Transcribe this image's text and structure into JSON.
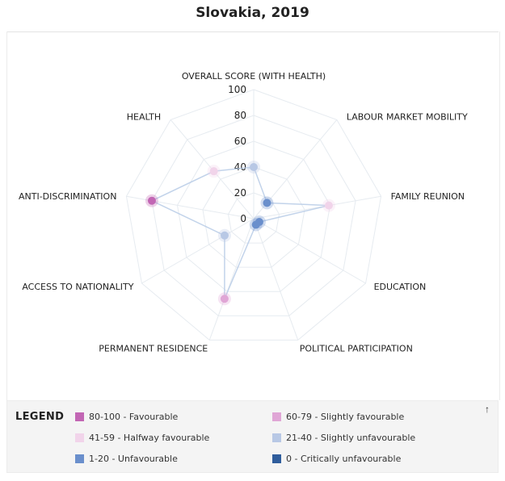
{
  "page": {
    "title": "Slovakia, 2019"
  },
  "chart_data": {
    "type": "radar",
    "title": "Slovakia, 2019",
    "axes": [
      "OVERALL SCORE (WITH HEALTH)",
      "LABOUR MARKET MOBILITY",
      "FAMILY REUNION",
      "EDUCATION",
      "POLITICAL PARTICIPATION",
      "PERMANENT RESIDENCE",
      "ACCESS TO NATIONALITY",
      "ANTI-DISCRIMINATION",
      "HEALTH"
    ],
    "radial_ticks": [
      "0",
      "20",
      "40",
      "60",
      "80",
      "100"
    ],
    "range": [
      0,
      100
    ],
    "values": [
      40,
      16,
      59,
      5,
      5,
      66,
      26,
      80,
      48
    ],
    "series_color": "#b7cbe6",
    "grid": true
  },
  "legend": {
    "title": "LEGEND",
    "collapse_icon": "arrow-up-icon",
    "items": [
      {
        "label": "80-100 - Favourable",
        "color": "#c266b4"
      },
      {
        "label": "60-79 - Slightly favourable",
        "color": "#e0a6d6"
      },
      {
        "label": "41-59 - Halfway favourable",
        "color": "#f1d4ea"
      },
      {
        "label": "21-40 - Slightly unfavourable",
        "color": "#b8c8e5"
      },
      {
        "label": "1-20 - Unfavourable",
        "color": "#6a8fcc"
      },
      {
        "label": "0 - Critically unfavourable",
        "color": "#2f5d9c"
      }
    ]
  }
}
